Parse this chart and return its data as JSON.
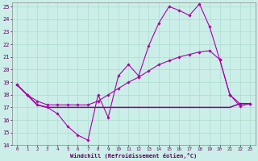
{
  "bg_color": "#cceee8",
  "grid_color": "#aaddcc",
  "line_color": "#aa00aa",
  "line_flat_color": "#880088",
  "xlim": [
    -0.5,
    23.5
  ],
  "ylim": [
    14,
    25.3
  ],
  "xticks": [
    0,
    1,
    2,
    3,
    4,
    5,
    6,
    7,
    8,
    9,
    10,
    11,
    12,
    13,
    14,
    15,
    16,
    17,
    18,
    19,
    20,
    21,
    22,
    23
  ],
  "yticks": [
    14,
    15,
    16,
    17,
    18,
    19,
    20,
    21,
    22,
    23,
    24,
    25
  ],
  "xlabel": "Windchill (Refroidissement éolien,°C)",
  "line1_x": [
    0,
    1,
    2,
    3,
    4,
    5,
    6,
    7,
    8,
    9,
    10,
    11,
    12,
    13,
    14,
    15,
    16,
    17,
    18,
    19,
    20,
    21,
    22,
    23
  ],
  "line1_y": [
    18.8,
    18.0,
    17.2,
    17.0,
    16.5,
    15.5,
    14.8,
    14.4,
    18.0,
    16.2,
    19.5,
    20.4,
    19.5,
    21.9,
    23.7,
    25.0,
    24.7,
    24.3,
    25.2,
    23.4,
    20.8,
    18.0,
    17.1,
    17.3
  ],
  "line2_x": [
    0,
    1,
    2,
    3,
    4,
    5,
    6,
    7,
    8,
    9,
    10,
    11,
    12,
    13,
    14,
    15,
    16,
    17,
    18,
    19,
    20,
    21,
    22,
    23
  ],
  "line2_y": [
    18.8,
    18.0,
    17.2,
    17.0,
    17.0,
    17.0,
    17.0,
    17.0,
    17.0,
    17.0,
    17.0,
    17.0,
    17.0,
    17.0,
    17.0,
    17.0,
    17.0,
    17.0,
    17.0,
    17.0,
    17.0,
    17.0,
    17.3,
    17.3
  ],
  "line3_x": [
    0,
    1,
    2,
    3,
    4,
    5,
    6,
    7,
    8,
    9,
    10,
    11,
    12,
    13,
    14,
    15,
    16,
    17,
    18,
    19,
    20,
    21,
    22,
    23
  ],
  "line3_y": [
    18.8,
    18.0,
    17.5,
    17.2,
    17.2,
    17.2,
    17.2,
    17.2,
    17.5,
    18.0,
    18.5,
    19.0,
    19.4,
    19.9,
    20.4,
    20.7,
    21.0,
    21.2,
    21.4,
    21.5,
    20.8,
    18.0,
    17.3,
    17.3
  ]
}
